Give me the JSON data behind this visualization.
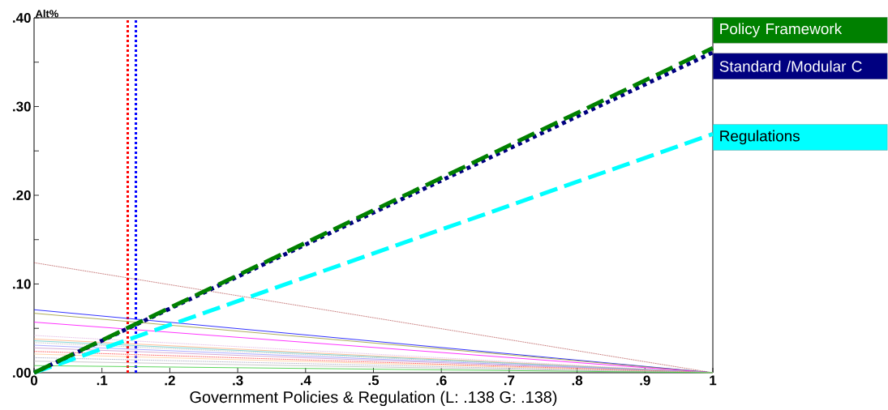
{
  "chart_data": {
    "type": "line",
    "xlabel": "Government Policies & Regulation (L: .138 G: .138)",
    "ylabel": "Alt%",
    "x": [
      0,
      1
    ],
    "xlim": [
      0,
      1
    ],
    "xticks": [
      {
        "value": 0,
        "label": "0"
      },
      {
        "value": 0.1,
        "label": ".1"
      },
      {
        "value": 0.2,
        "label": ".2"
      },
      {
        "value": 0.3,
        "label": ".3"
      },
      {
        "value": 0.4,
        "label": ".4"
      },
      {
        "value": 0.5,
        "label": ".5"
      },
      {
        "value": 0.6,
        "label": ".6"
      },
      {
        "value": 0.7,
        "label": ".7"
      },
      {
        "value": 0.8,
        "label": ".8"
      },
      {
        "value": 0.9,
        "label": ".9"
      },
      {
        "value": 1,
        "label": "1"
      }
    ],
    "ylim": [
      0,
      0.4
    ],
    "yticks": [
      {
        "value": 0,
        "label": ".00"
      },
      {
        "value": 0.05,
        "label": null
      },
      {
        "value": 0.1,
        "label": ".10"
      },
      {
        "value": 0.15,
        "label": null
      },
      {
        "value": 0.2,
        "label": ".20"
      },
      {
        "value": 0.25,
        "label": null
      },
      {
        "value": 0.3,
        "label": ".30"
      },
      {
        "value": 0.35,
        "label": null
      },
      {
        "value": 0.4,
        "label": ".40"
      }
    ],
    "series": [
      {
        "name": "Policy Framework",
        "color": "#008000",
        "line_style": "dashed",
        "values": [
          0,
          0.366
        ]
      },
      {
        "name": "Standard /Modular C",
        "color": "#000080",
        "line_style": "dotted",
        "values": [
          0,
          0.361
        ]
      },
      {
        "name": "Regulations",
        "color": "#00ffff",
        "line_style": "dashed",
        "values": [
          0,
          0.269
        ]
      },
      {
        "color": "#a52a2a",
        "line_style": "dotted",
        "values": [
          0.124,
          0
        ]
      },
      {
        "color": "#0000ff",
        "line_style": "solid",
        "values": [
          0.071,
          0
        ]
      },
      {
        "color": "#999933",
        "line_style": "solid",
        "values": [
          0.067,
          0
        ]
      },
      {
        "color": "#ff00ff",
        "line_style": "solid",
        "values": [
          0.057,
          0
        ]
      },
      {
        "color": "#d8a0d8",
        "line_style": "dotted",
        "values": [
          0.042,
          0
        ]
      },
      {
        "color": "#ffb080",
        "line_style": "solid",
        "values": [
          0.038,
          0
        ]
      },
      {
        "color": "#66cccc",
        "line_style": "solid",
        "values": [
          0.036,
          0
        ]
      },
      {
        "color": "#aaaaaa",
        "line_style": "dotted",
        "values": [
          0.034,
          0
        ]
      },
      {
        "color": "#9999ff",
        "line_style": "solid",
        "values": [
          0.031,
          0
        ]
      },
      {
        "color": "#cc99cc",
        "line_style": "solid",
        "values": [
          0.028,
          0
        ]
      },
      {
        "color": "#ff0000",
        "line_style": "dotted",
        "values": [
          0.024,
          0
        ]
      },
      {
        "color": "#ffcc99",
        "line_style": "solid",
        "values": [
          0.021,
          0
        ]
      },
      {
        "color": "#8888aa",
        "line_style": "dotted",
        "values": [
          0.017,
          0
        ]
      },
      {
        "color": "#bbbbbb",
        "line_style": "solid",
        "values": [
          0.013,
          0
        ]
      },
      {
        "color": "#33cc33",
        "line_style": "solid",
        "values": [
          0.008,
          0
        ]
      }
    ],
    "ref_lines": [
      {
        "axis": "x",
        "value": 0.138,
        "color": "#ff0000",
        "line_style": "dotted"
      },
      {
        "axis": "x",
        "value": 0.15,
        "color": "#0000ff",
        "line_style": "dotted"
      }
    ]
  }
}
